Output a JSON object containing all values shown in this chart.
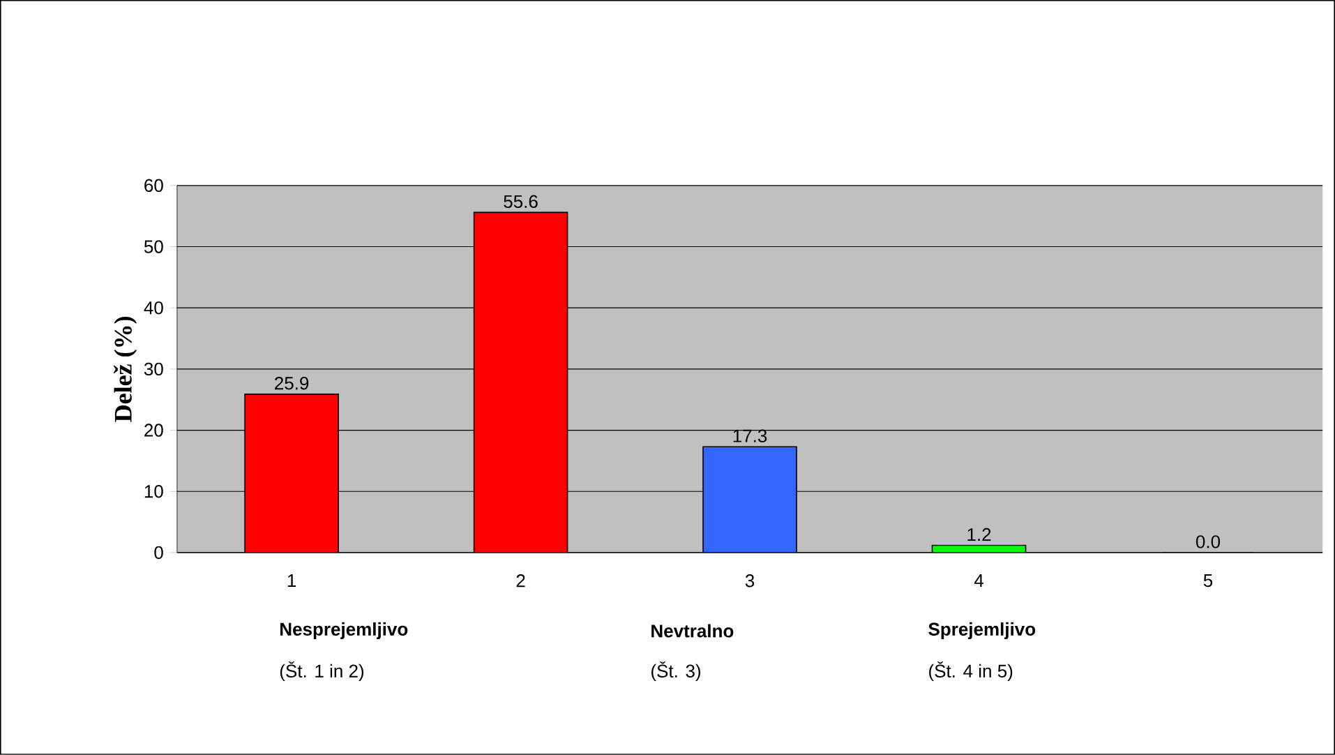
{
  "chart_data": {
    "type": "bar",
    "ylabel": "Delež (%)",
    "categories": [
      "1",
      "2",
      "3",
      "4",
      "5"
    ],
    "values": [
      25.9,
      55.6,
      17.3,
      1.2,
      0.0
    ],
    "colors": [
      "#ff0000",
      "#ff0000",
      "#3366ff",
      "#00ff00",
      "#00ff00"
    ],
    "value_labels": [
      "25.9",
      "55.6",
      "17.3",
      "1.2",
      "0.0"
    ],
    "ylim": [
      0,
      60
    ],
    "yticks": [
      0,
      10,
      20,
      30,
      40,
      50,
      60
    ],
    "grid": "y",
    "annotations": [
      "Nesprejemljivo",
      "(Št. 1 in 2)",
      "Nevtralno",
      "(Št. 3)",
      "Sprejemljivo",
      "(Št. 4 in 5)"
    ]
  }
}
